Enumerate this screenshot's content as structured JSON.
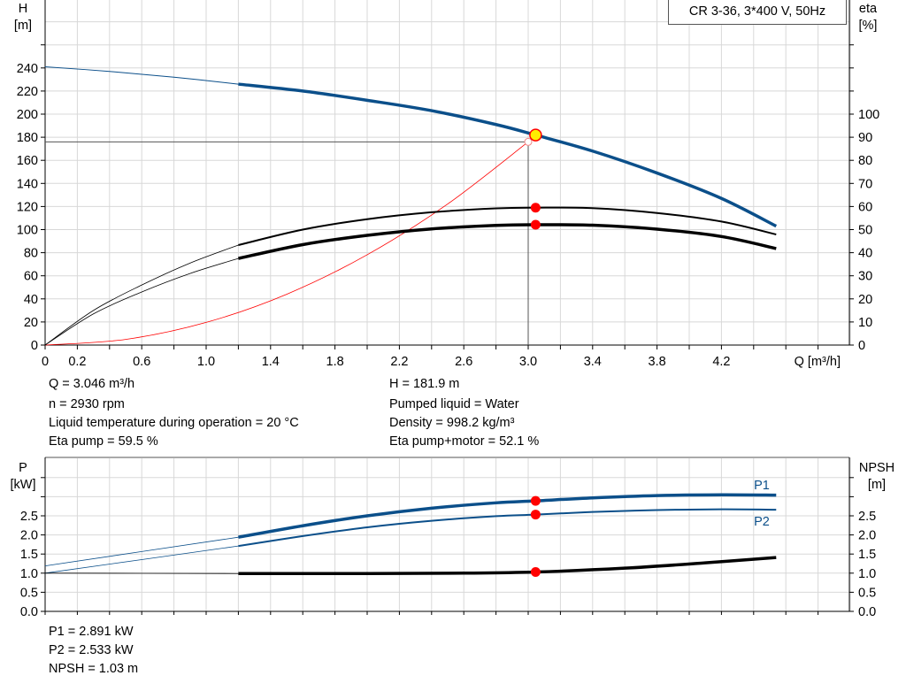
{
  "chart_data": [
    {
      "type": "line",
      "title": "CR 3-36, 3*400 V, 50Hz",
      "xlabel": "Q [m³/h]",
      "ylabel_left": [
        "H",
        "[m]"
      ],
      "ylabel_right": [
        "eta",
        "[%]"
      ],
      "xlim": [
        0,
        5.0
      ],
      "ylim_left": [
        0,
        300
      ],
      "ylim_right": [
        0,
        150
      ],
      "grid": true,
      "x_ticks": [
        "0",
        "0.2",
        "0.6",
        "1.0",
        "1.4",
        "1.8",
        "2.2",
        "2.6",
        "3.0",
        "3.4",
        "3.8",
        "4.2"
      ],
      "x_tick_values": [
        0,
        0.2,
        0.6,
        1.0,
        1.4,
        1.8,
        2.2,
        2.6,
        3.0,
        3.4,
        3.8,
        4.2
      ],
      "y_left_ticks": [
        0,
        20,
        40,
        60,
        80,
        100,
        120,
        140,
        160,
        180,
        200,
        220,
        240
      ],
      "y_right_ticks": [
        0,
        10,
        20,
        30,
        40,
        50,
        60,
        70,
        80,
        90,
        100
      ],
      "series": [
        {
          "id": "head",
          "axis": "left",
          "color": "#0b4f8a",
          "points": [
            [
              0,
              241
            ],
            [
              0.4,
              237
            ],
            [
              0.8,
              232
            ],
            [
              1.2,
              226
            ],
            [
              1.6,
              220
            ],
            [
              2.0,
              212
            ],
            [
              2.4,
              203
            ],
            [
              2.8,
              191
            ],
            [
              3.046,
              181.9
            ],
            [
              3.4,
              168
            ],
            [
              3.8,
              149
            ],
            [
              4.2,
              127
            ],
            [
              4.54,
              103
            ]
          ]
        },
        {
          "id": "eta-pump",
          "axis": "right",
          "color": "#000000",
          "points": [
            [
              0,
              0
            ],
            [
              0.3,
              15
            ],
            [
              0.6,
              26
            ],
            [
              0.9,
              35.5
            ],
            [
              1.2,
              43.3
            ],
            [
              1.6,
              50
            ],
            [
              2.0,
              54.5
            ],
            [
              2.4,
              57.5
            ],
            [
              2.8,
              59.2
            ],
            [
              3.046,
              59.5
            ],
            [
              3.4,
              59.3
            ],
            [
              3.8,
              57.2
            ],
            [
              4.2,
              53.5
            ],
            [
              4.54,
              47.9
            ]
          ]
        },
        {
          "id": "eta-pump-motor",
          "axis": "right",
          "color": "#000000",
          "points": [
            [
              0,
              0
            ],
            [
              0.3,
              13.5
            ],
            [
              0.6,
              23
            ],
            [
              0.9,
              31
            ],
            [
              1.2,
              37.5
            ],
            [
              1.6,
              43.5
            ],
            [
              2.0,
              47.5
            ],
            [
              2.4,
              50.3
            ],
            [
              2.8,
              51.8
            ],
            [
              3.046,
              52.1
            ],
            [
              3.4,
              51.9
            ],
            [
              3.8,
              50.2
            ],
            [
              4.2,
              47
            ],
            [
              4.54,
              41.8
            ]
          ]
        },
        {
          "id": "system-curve",
          "axis": "left",
          "color": "#ff0000",
          "points": [
            [
              0,
              0
            ],
            [
              0.5,
              4.9
            ],
            [
              1.0,
              19.6
            ],
            [
              1.5,
              44
            ],
            [
              2.0,
              78.2
            ],
            [
              2.5,
              122.2
            ],
            [
              3.0,
              176
            ]
          ]
        }
      ],
      "duty_point": {
        "q": 3.046,
        "h": 181.9,
        "eta_pump": 59.5,
        "eta_pump_motor": 52.1
      },
      "setpoint": {
        "q": 3.0,
        "h": 176
      },
      "colors": {
        "duty_point": "#ffee00",
        "markers": "#ff0000"
      }
    },
    {
      "type": "line",
      "xlim": [
        0,
        5.0
      ],
      "ylabel_left": [
        "P",
        "[kW]"
      ],
      "ylabel_right": [
        "NPSH",
        "[m]"
      ],
      "ylim": [
        0,
        4.0
      ],
      "grid": true,
      "y_ticks": [
        "0.0",
        "0.5",
        "1.0",
        "1.5",
        "2.0",
        "2.5"
      ],
      "y_tick_values": [
        0,
        0.5,
        1.0,
        1.5,
        2.0,
        2.5
      ],
      "series": [
        {
          "id": "p1",
          "name": "P1",
          "color": "#0b4f8a",
          "points": [
            [
              0,
              1.19
            ],
            [
              1.2,
              1.94
            ],
            [
              1.6,
              2.24
            ],
            [
              2.0,
              2.5
            ],
            [
              2.4,
              2.7
            ],
            [
              2.8,
              2.84
            ],
            [
              3.046,
              2.891
            ],
            [
              3.4,
              2.97
            ],
            [
              3.8,
              3.03
            ],
            [
              4.2,
              3.05
            ],
            [
              4.54,
              3.04
            ]
          ]
        },
        {
          "id": "p2",
          "name": "P2",
          "color": "#0b4f8a",
          "points": [
            [
              0,
              1.0
            ],
            [
              1.2,
              1.71
            ],
            [
              1.6,
              1.97
            ],
            [
              2.0,
              2.2
            ],
            [
              2.4,
              2.37
            ],
            [
              2.8,
              2.49
            ],
            [
              3.046,
              2.533
            ],
            [
              3.4,
              2.6
            ],
            [
              3.8,
              2.65
            ],
            [
              4.2,
              2.67
            ],
            [
              4.54,
              2.66
            ]
          ]
        },
        {
          "id": "npsh",
          "color": "#000000",
          "points": [
            [
              0,
              1.0
            ],
            [
              1.2,
              0.99
            ],
            [
              2.0,
              0.99
            ],
            [
              2.6,
              1.0
            ],
            [
              3.046,
              1.03
            ],
            [
              3.6,
              1.13
            ],
            [
              4.1,
              1.27
            ],
            [
              4.54,
              1.41
            ]
          ]
        }
      ],
      "duty_point": {
        "q": 3.046,
        "p1": 2.891,
        "p2": 2.533,
        "npsh": 1.03
      }
    }
  ],
  "info": {
    "q": "Q = 3.046 m³/h",
    "n": "n = 2930 rpm",
    "temp": "Liquid temperature during operation = 20 °C",
    "eta_pump": "Eta pump = 59.5 %",
    "h": "H = 181.9 m",
    "liquid": "Pumped liquid = Water",
    "density": "Density = 998.2 kg/m³",
    "eta_pm": "Eta pump+motor = 52.1 %",
    "p1": "P1 = 2.891 kW",
    "p2": "P2 = 2.533 kW",
    "npsh": "NPSH = 1.03 m"
  }
}
